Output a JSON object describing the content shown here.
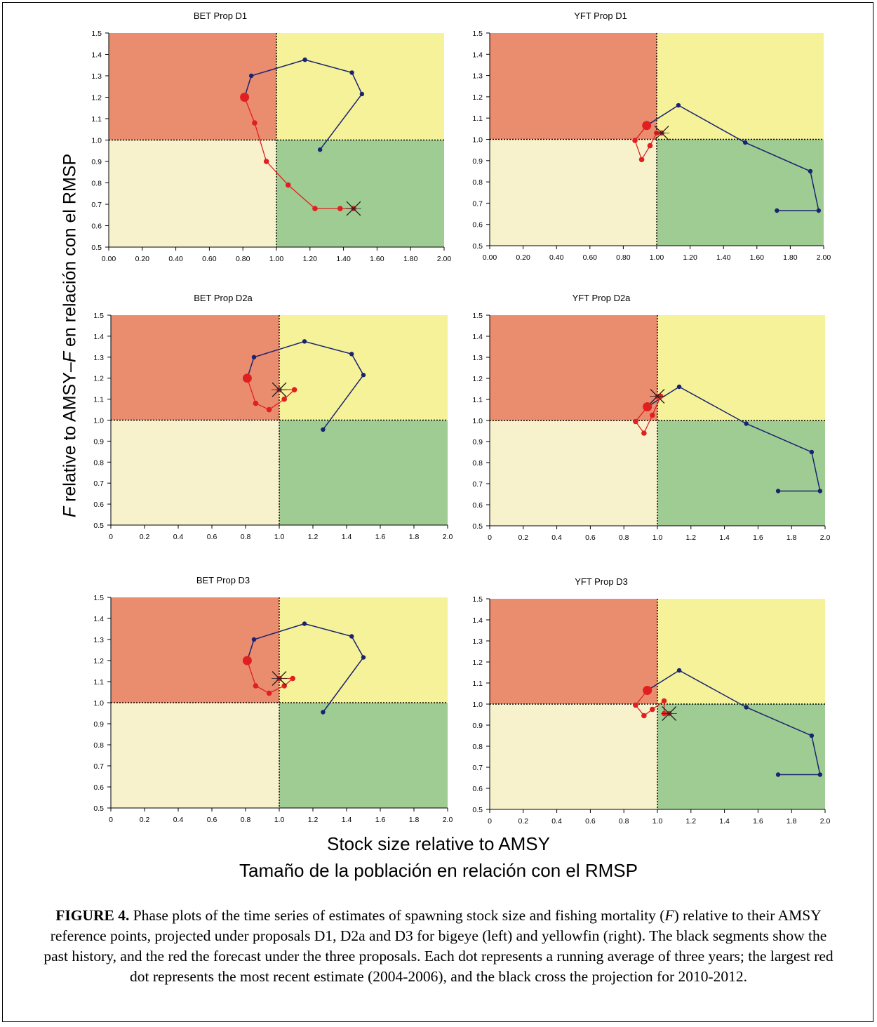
{
  "axis_labels": {
    "y_prefix": "F",
    "y_rest": " relative to AMSY–",
    "y_f": "F",
    "y_spanish": " en relación con el RMSP",
    "x_line1": "Stock size relative to AMSY",
    "x_line2": "Tamaño de la población en relación con el RMSP"
  },
  "caption": {
    "label": "FIGURE 4.",
    "part1": " Phase plots of the time series of estimates of spawning stock size and fishing mortality (",
    "f": "F",
    "part2": ") relative to their AMSY reference points, projected under proposals D1, D2a and D3 for bigeye (left) and yellowfin (right). The black segments show the past history, and the red the forecast under the three proposals.  Each dot represents a running average of three years; the largest red dot represents the most recent estimate (2004-2006), and the black cross the projection for 2010-2012."
  },
  "colors": {
    "red_zone": "#ea8c6e",
    "yellow_zone": "#f6f299",
    "cream_zone": "#f8f2cc",
    "green_zone": "#9fcc92",
    "history": "#1a2370",
    "forecast": "#e02020",
    "cross": "#222222"
  },
  "chart_data": [
    {
      "type": "scatter",
      "title": "BET Prop D1",
      "xlim": [
        0,
        2
      ],
      "ylim": [
        0.5,
        1.5
      ],
      "xticks": [
        "0.00",
        "0.20",
        "0.40",
        "0.60",
        "0.80",
        "1.00",
        "1.20",
        "1.40",
        "1.60",
        "1.80",
        "2.00"
      ],
      "yticks": [
        "0.5",
        "0.6",
        "0.7",
        "0.8",
        "0.9",
        "1.0",
        "1.1",
        "1.2",
        "1.3",
        "1.4",
        "1.5"
      ],
      "history": [
        [
          1.26,
          0.955
        ],
        [
          1.51,
          1.215
        ],
        [
          1.45,
          1.315
        ],
        [
          1.17,
          1.375
        ],
        [
          0.85,
          1.3
        ],
        [
          0.81,
          1.2
        ]
      ],
      "forecast": [
        [
          0.81,
          1.2
        ],
        [
          0.87,
          1.08
        ],
        [
          0.94,
          0.9
        ],
        [
          1.07,
          0.79
        ],
        [
          1.23,
          0.68
        ],
        [
          1.38,
          0.68
        ],
        [
          1.46,
          0.68
        ]
      ],
      "cross": [
        1.46,
        0.68
      ]
    },
    {
      "type": "scatter",
      "title": "YFT Prop D1",
      "xlim": [
        0,
        2
      ],
      "ylim": [
        0.5,
        1.5
      ],
      "xticks": [
        "0.00",
        "0.20",
        "0.40",
        "0.60",
        "0.80",
        "1.00",
        "1.20",
        "1.40",
        "1.60",
        "1.80",
        "2.00"
      ],
      "yticks": [
        "0.5",
        "0.6",
        "0.7",
        "0.8",
        "0.9",
        "1.0",
        "1.1",
        "1.2",
        "1.3",
        "1.4",
        "1.5"
      ],
      "history": [
        [
          1.72,
          0.665
        ],
        [
          1.97,
          0.665
        ],
        [
          1.92,
          0.85
        ],
        [
          1.53,
          0.985
        ],
        [
          1.13,
          1.16
        ],
        [
          0.94,
          1.065
        ]
      ],
      "forecast": [
        [
          0.94,
          1.065
        ],
        [
          0.87,
          0.995
        ],
        [
          0.91,
          0.905
        ],
        [
          0.96,
          0.97
        ],
        [
          1.0,
          1.03
        ],
        [
          1.03,
          1.03
        ]
      ],
      "cross": [
        1.03,
        1.03
      ]
    },
    {
      "type": "scatter",
      "title": "BET Prop D2a",
      "xlim": [
        0,
        2
      ],
      "ylim": [
        0.5,
        1.5
      ],
      "xticks": [
        "0",
        "0.2",
        "0.4",
        "0.6",
        "0.8",
        "1.0",
        "1.2",
        "1.4",
        "1.6",
        "1.8",
        "2.0"
      ],
      "yticks": [
        "0.5",
        "0.6",
        "0.7",
        "0.8",
        "0.9",
        "1.0",
        "1.1",
        "1.2",
        "1.3",
        "1.4",
        "1.5"
      ],
      "history": [
        [
          1.26,
          0.955
        ],
        [
          1.5,
          1.215
        ],
        [
          1.43,
          1.315
        ],
        [
          1.15,
          1.375
        ],
        [
          0.85,
          1.3
        ],
        [
          0.81,
          1.2
        ]
      ],
      "forecast": [
        [
          0.81,
          1.2
        ],
        [
          0.86,
          1.08
        ],
        [
          0.94,
          1.05
        ],
        [
          1.03,
          1.1
        ],
        [
          1.09,
          1.145
        ],
        [
          1.0,
          1.145
        ]
      ],
      "cross": [
        1.0,
        1.145
      ]
    },
    {
      "type": "scatter",
      "title": "YFT Prop D2a",
      "xlim": [
        0,
        2
      ],
      "ylim": [
        0.5,
        1.5
      ],
      "xticks": [
        "0",
        "0.2",
        "0.4",
        "0.6",
        "0.8",
        "1.0",
        "1.2",
        "1.4",
        "1.6",
        "1.8",
        "2.0"
      ],
      "yticks": [
        "0.5",
        "0.6",
        "0.7",
        "0.8",
        "0.9",
        "1.0",
        "1.1",
        "1.2",
        "1.3",
        "1.4",
        "1.5"
      ],
      "history": [
        [
          1.72,
          0.665
        ],
        [
          1.97,
          0.665
        ],
        [
          1.92,
          0.85
        ],
        [
          1.53,
          0.985
        ],
        [
          1.13,
          1.16
        ],
        [
          0.94,
          1.065
        ]
      ],
      "forecast": [
        [
          0.94,
          1.065
        ],
        [
          0.87,
          0.995
        ],
        [
          0.92,
          0.94
        ],
        [
          0.97,
          1.025
        ],
        [
          1.02,
          1.115
        ],
        [
          1.0,
          1.115
        ]
      ],
      "cross": [
        1.0,
        1.115
      ]
    },
    {
      "type": "scatter",
      "title": "BET Prop D3",
      "xlim": [
        0,
        2
      ],
      "ylim": [
        0.5,
        1.5
      ],
      "xticks": [
        "0",
        "0.2",
        "0.4",
        "0.6",
        "0.8",
        "1.0",
        "1.2",
        "1.4",
        "1.6",
        "1.8",
        "2.0"
      ],
      "yticks": [
        "0.5",
        "0.6",
        "0.7",
        "0.8",
        "0.9",
        "1.0",
        "1.1",
        "1.2",
        "1.3",
        "1.4",
        "1.5"
      ],
      "history": [
        [
          1.26,
          0.955
        ],
        [
          1.5,
          1.215
        ],
        [
          1.43,
          1.315
        ],
        [
          1.15,
          1.375
        ],
        [
          0.85,
          1.3
        ],
        [
          0.81,
          1.2
        ]
      ],
      "forecast": [
        [
          0.81,
          1.2
        ],
        [
          0.86,
          1.08
        ],
        [
          0.94,
          1.045
        ],
        [
          1.03,
          1.08
        ],
        [
          1.08,
          1.115
        ],
        [
          1.0,
          1.115
        ]
      ],
      "cross": [
        1.0,
        1.115
      ]
    },
    {
      "type": "scatter",
      "title": "YFT Prop D3",
      "xlim": [
        0,
        2
      ],
      "ylim": [
        0.5,
        1.5
      ],
      "xticks": [
        "0",
        "0.2",
        "0.4",
        "0.6",
        "0.8",
        "1.0",
        "1.2",
        "1.4",
        "1.6",
        "1.8",
        "2.0"
      ],
      "yticks": [
        "0.5",
        "0.6",
        "0.7",
        "0.8",
        "0.9",
        "1.0",
        "1.1",
        "1.2",
        "1.3",
        "1.4",
        "1.5"
      ],
      "history": [
        [
          1.72,
          0.665
        ],
        [
          1.97,
          0.665
        ],
        [
          1.92,
          0.85
        ],
        [
          1.53,
          0.985
        ],
        [
          1.13,
          1.16
        ],
        [
          0.94,
          1.065
        ]
      ],
      "forecast": [
        [
          0.94,
          1.065
        ],
        [
          0.87,
          0.995
        ],
        [
          0.92,
          0.945
        ],
        [
          0.97,
          0.975
        ],
        [
          1.04,
          1.015
        ],
        [
          1.04,
          0.955
        ],
        [
          1.07,
          0.955
        ]
      ],
      "cross": [
        1.07,
        0.955
      ]
    }
  ]
}
